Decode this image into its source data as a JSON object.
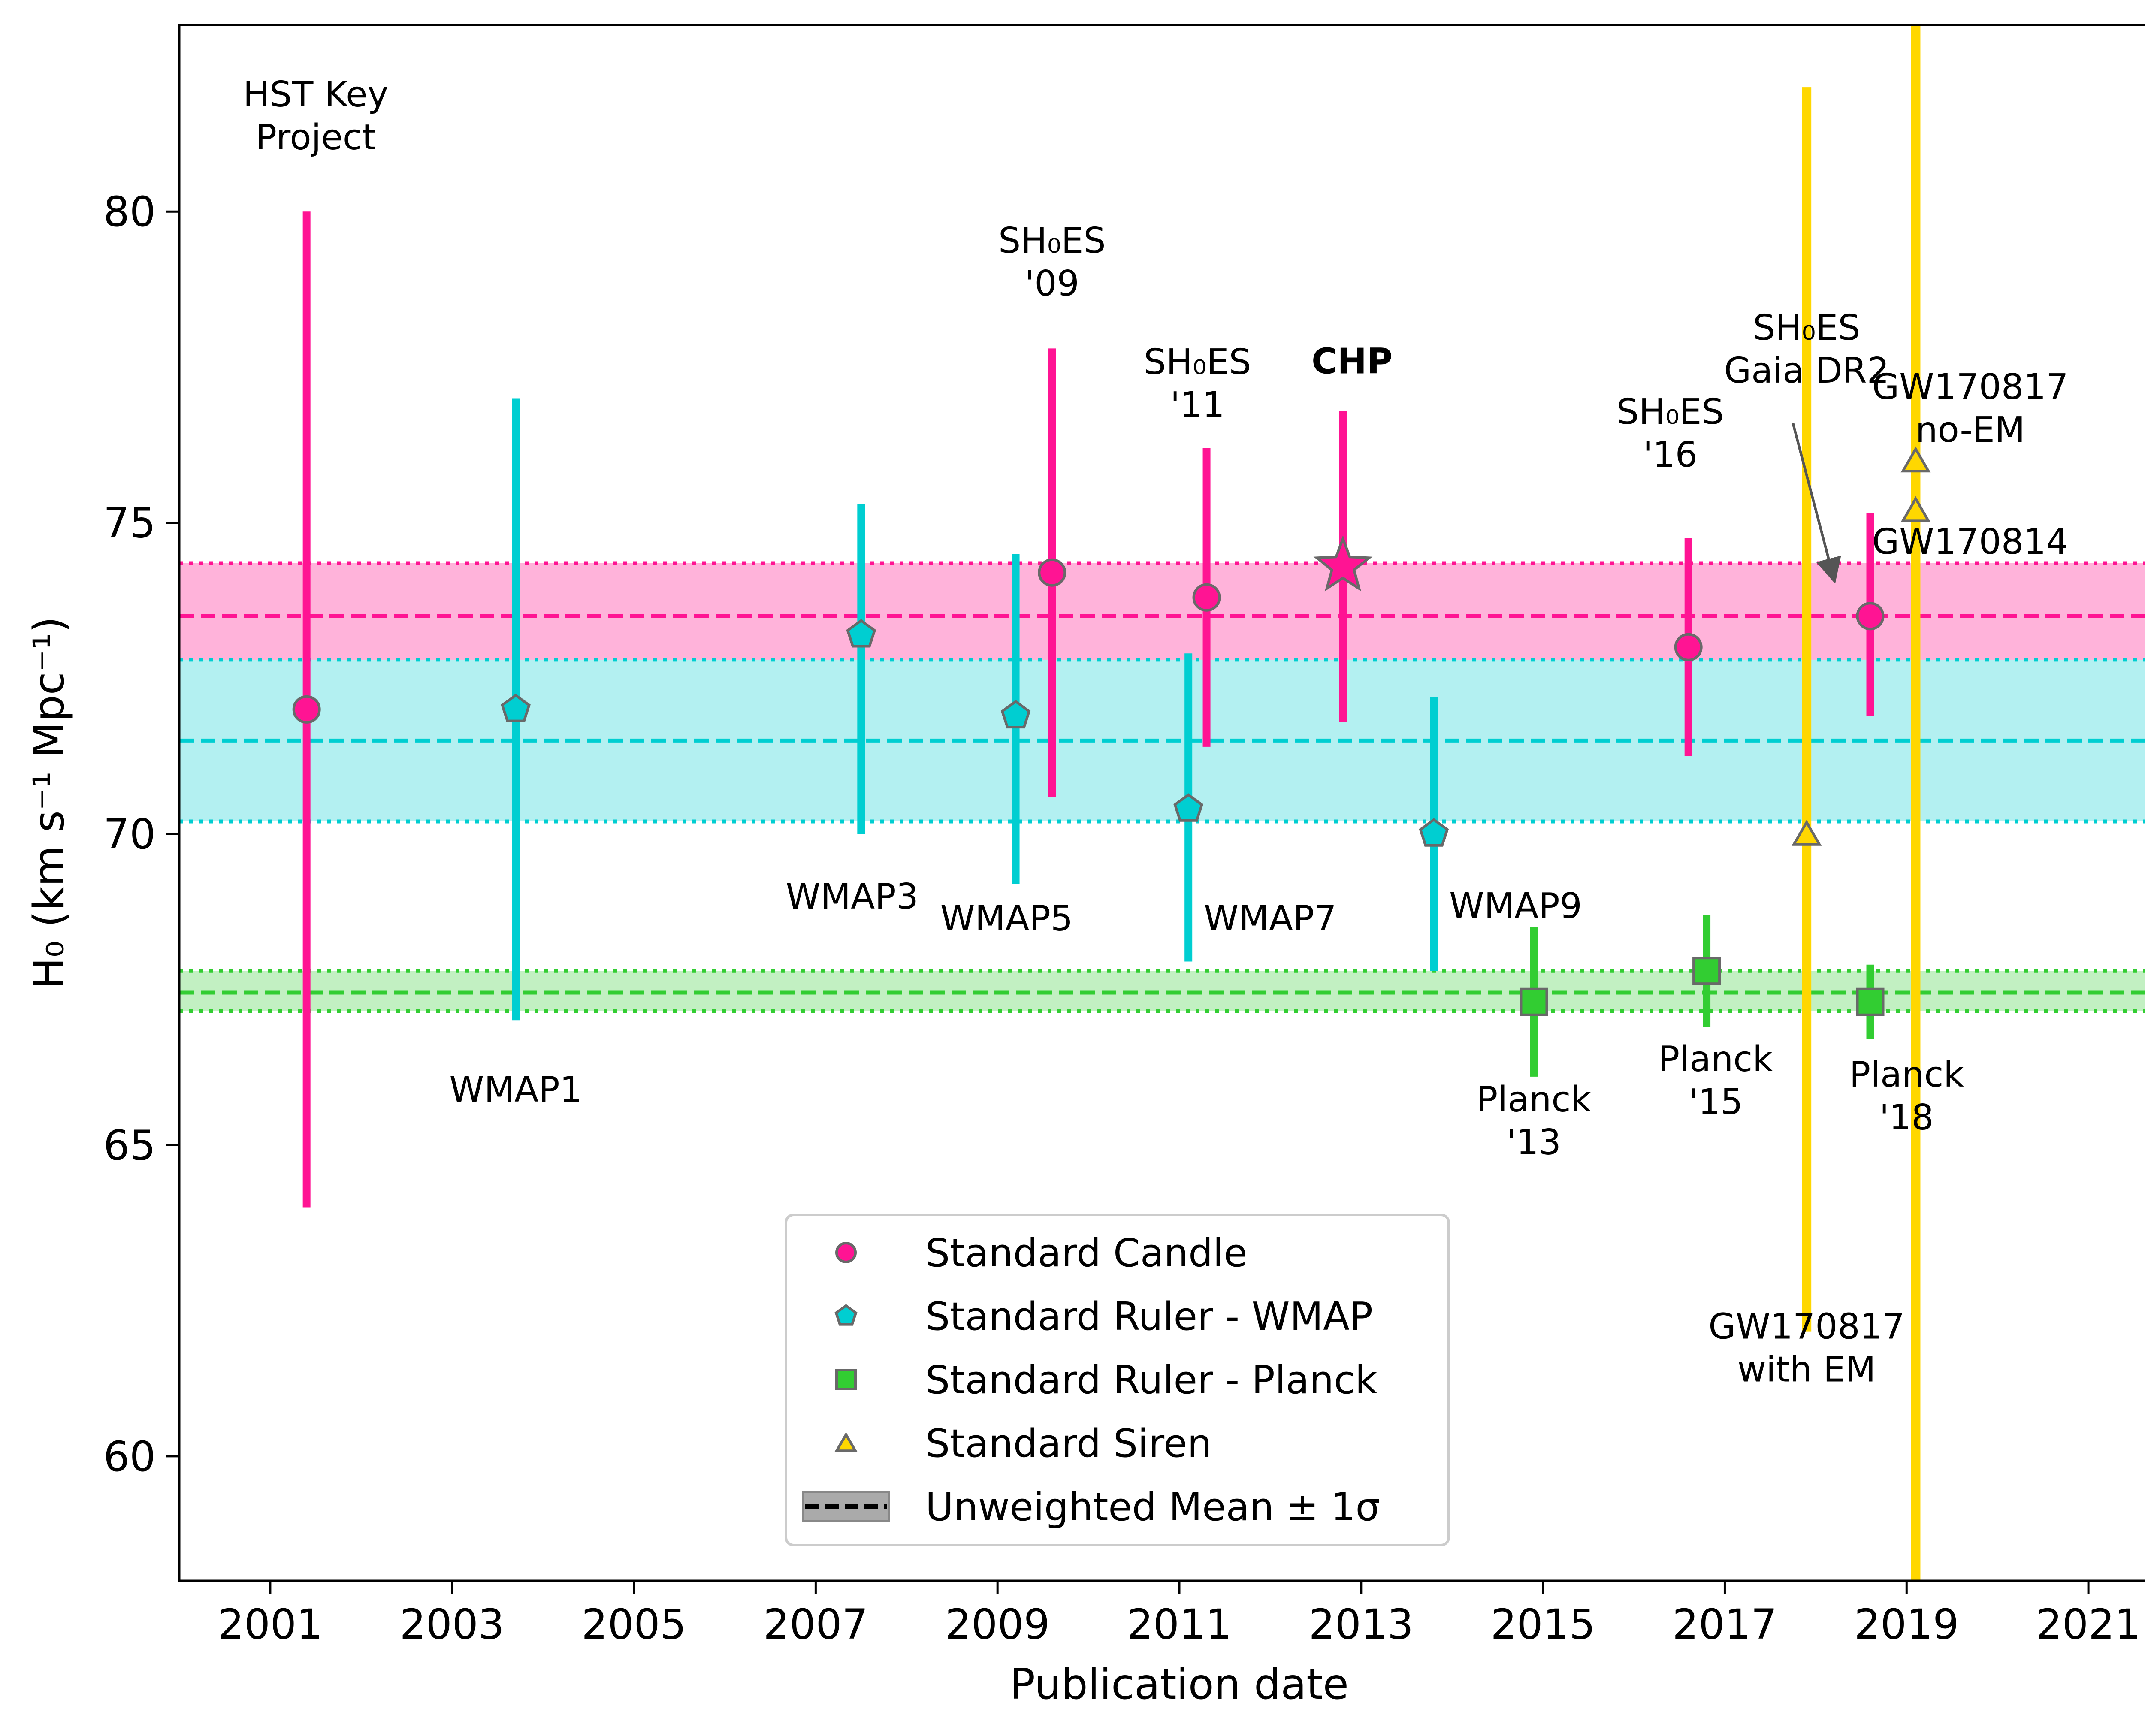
{
  "chart_data": {
    "type": "scatter",
    "title": "",
    "xlabel": "Publication date",
    "ylabel": "H₀ (km s⁻¹ Mpc⁻¹)",
    "xlim": [
      2000.0,
      2022.0
    ],
    "ylim": [
      58.0,
      83.0
    ],
    "xticks": [
      "2001",
      "2003",
      "2005",
      "2007",
      "2009",
      "2011",
      "2013",
      "2015",
      "2017",
      "2019",
      "2021"
    ],
    "yticks": [
      "60",
      "65",
      "70",
      "75",
      "80"
    ],
    "grid": false,
    "legend_placement": "lower-center",
    "colors": {
      "candle": "#ff1493",
      "wmap": "#00ced1",
      "planck": "#32cd32",
      "siren": "#ffd700",
      "marker_edge": "#696969",
      "band_candle": "#ffb3da",
      "band_wmap": "#b3f0f1",
      "band_planck": "#c2f0c2"
    },
    "bands": [
      {
        "group": "candle",
        "mean": 73.5,
        "low": 72.6,
        "high": 74.35
      },
      {
        "group": "wmap",
        "mean": 71.5,
        "low": 70.2,
        "high": 72.8
      },
      {
        "group": "planck",
        "mean": 67.45,
        "low": 67.15,
        "high": 67.8
      }
    ],
    "points": [
      {
        "group": "candle",
        "marker": "circle",
        "x": 2001.4,
        "y": 72.0,
        "ylo": 64.0,
        "yhi": 80.0
      },
      {
        "group": "candle",
        "marker": "circle",
        "x": 2009.6,
        "y": 74.2,
        "ylo": 70.6,
        "yhi": 77.8
      },
      {
        "group": "candle",
        "marker": "circle",
        "x": 2011.3,
        "y": 73.8,
        "ylo": 71.4,
        "yhi": 76.2
      },
      {
        "group": "candle",
        "marker": "star",
        "x": 2012.8,
        "y": 74.3,
        "ylo": 71.8,
        "yhi": 76.8
      },
      {
        "group": "candle",
        "marker": "circle",
        "x": 2016.6,
        "y": 73.0,
        "ylo": 71.25,
        "yhi": 74.75
      },
      {
        "group": "candle",
        "marker": "circle",
        "x": 2018.6,
        "y": 73.5,
        "ylo": 71.9,
        "yhi": 75.15
      },
      {
        "group": "wmap",
        "marker": "pentagon",
        "x": 2003.7,
        "y": 72.0,
        "ylo": 67.0,
        "yhi": 77.0
      },
      {
        "group": "wmap",
        "marker": "pentagon",
        "x": 2007.5,
        "y": 73.2,
        "ylo": 70.0,
        "yhi": 75.3
      },
      {
        "group": "wmap",
        "marker": "pentagon",
        "x": 2009.2,
        "y": 71.9,
        "ylo": 69.2,
        "yhi": 74.5
      },
      {
        "group": "wmap",
        "marker": "pentagon",
        "x": 2011.1,
        "y": 70.4,
        "ylo": 67.95,
        "yhi": 72.9
      },
      {
        "group": "wmap",
        "marker": "pentagon",
        "x": 2013.8,
        "y": 70.0,
        "ylo": 67.8,
        "yhi": 72.2
      },
      {
        "group": "planck",
        "marker": "square",
        "x": 2014.9,
        "y": 67.3,
        "ylo": 66.1,
        "yhi": 68.5
      },
      {
        "group": "planck",
        "marker": "square",
        "x": 2016.8,
        "y": 67.8,
        "ylo": 66.9,
        "yhi": 68.7
      },
      {
        "group": "planck",
        "marker": "square",
        "x": 2018.6,
        "y": 67.3,
        "ylo": 66.7,
        "yhi": 67.9
      },
      {
        "group": "siren",
        "marker": "triangle",
        "x": 2017.9,
        "y": 70.0,
        "ylo": 62.0,
        "yhi": 82.0
      },
      {
        "group": "siren",
        "marker": "triangle",
        "x": 2019.1,
        "y": 76.0,
        "ylo": null,
        "yhi": null
      },
      {
        "group": "siren",
        "marker": "triangle",
        "x": 2019.1,
        "y": 75.2,
        "ylo": 58.0,
        "yhi": 83.0
      }
    ],
    "annotations": [
      {
        "lines": [
          "HST Key",
          "Project"
        ],
        "x": 2001.5,
        "y": 81.0,
        "bold": false
      },
      {
        "lines": [
          "SH₀ES",
          "'09"
        ],
        "x": 2009.6,
        "y": 78.65,
        "bold": false
      },
      {
        "lines": [
          "SH₀ES",
          "'11"
        ],
        "x": 2011.2,
        "y": 76.7,
        "bold": false
      },
      {
        "lines": [
          "CHP"
        ],
        "x": 2012.9,
        "y": 77.4,
        "bold": true
      },
      {
        "lines": [
          "SH₀ES",
          "'16"
        ],
        "x": 2016.4,
        "y": 75.9,
        "bold": false
      },
      {
        "lines": [
          "SH₀ES",
          "Gaia DR2"
        ],
        "x": 2017.9,
        "y": 77.25,
        "bold": false
      },
      {
        "lines": [
          "GW170817",
          "no-EM"
        ],
        "x": 2019.7,
        "y": 76.3,
        "bold": false
      },
      {
        "lines": [
          "GW170814"
        ],
        "x": 2019.7,
        "y": 74.5,
        "bold": false
      },
      {
        "lines": [
          "WMAP1"
        ],
        "x": 2003.7,
        "y": 65.7,
        "bold": false
      },
      {
        "lines": [
          "WMAP3"
        ],
        "x": 2007.4,
        "y": 68.8,
        "bold": false
      },
      {
        "lines": [
          "WMAP5"
        ],
        "x": 2009.1,
        "y": 68.45,
        "bold": false
      },
      {
        "lines": [
          "WMAP7"
        ],
        "x": 2012.0,
        "y": 68.45,
        "bold": false
      },
      {
        "lines": [
          "WMAP9"
        ],
        "x": 2014.7,
        "y": 68.65,
        "bold": false
      },
      {
        "lines": [
          "Planck",
          "'13"
        ],
        "x": 2014.9,
        "y": 64.85,
        "bold": false
      },
      {
        "lines": [
          "Planck",
          "'15"
        ],
        "x": 2016.9,
        "y": 65.5,
        "bold": false
      },
      {
        "lines": [
          "Planck",
          "'18"
        ],
        "x": 2019.0,
        "y": 65.25,
        "bold": false
      },
      {
        "lines": [
          "GW170817",
          "with EM"
        ],
        "x": 2017.9,
        "y": 61.2,
        "bold": false
      }
    ],
    "arrow": {
      "from_x": 2017.75,
      "from_y": 76.6,
      "to_x": 2018.2,
      "to_y": 74.1
    },
    "legend": [
      {
        "label": "Standard Candle",
        "group": "candle",
        "marker": "circle"
      },
      {
        "label": "Standard Ruler - WMAP",
        "group": "wmap",
        "marker": "pentagon"
      },
      {
        "label": "Standard Ruler - Planck",
        "group": "planck",
        "marker": "square"
      },
      {
        "label": "Standard Siren",
        "group": "siren",
        "marker": "triangle"
      },
      {
        "label": "Unweighted Mean ± 1σ",
        "group": "mean",
        "marker": "band"
      }
    ]
  }
}
